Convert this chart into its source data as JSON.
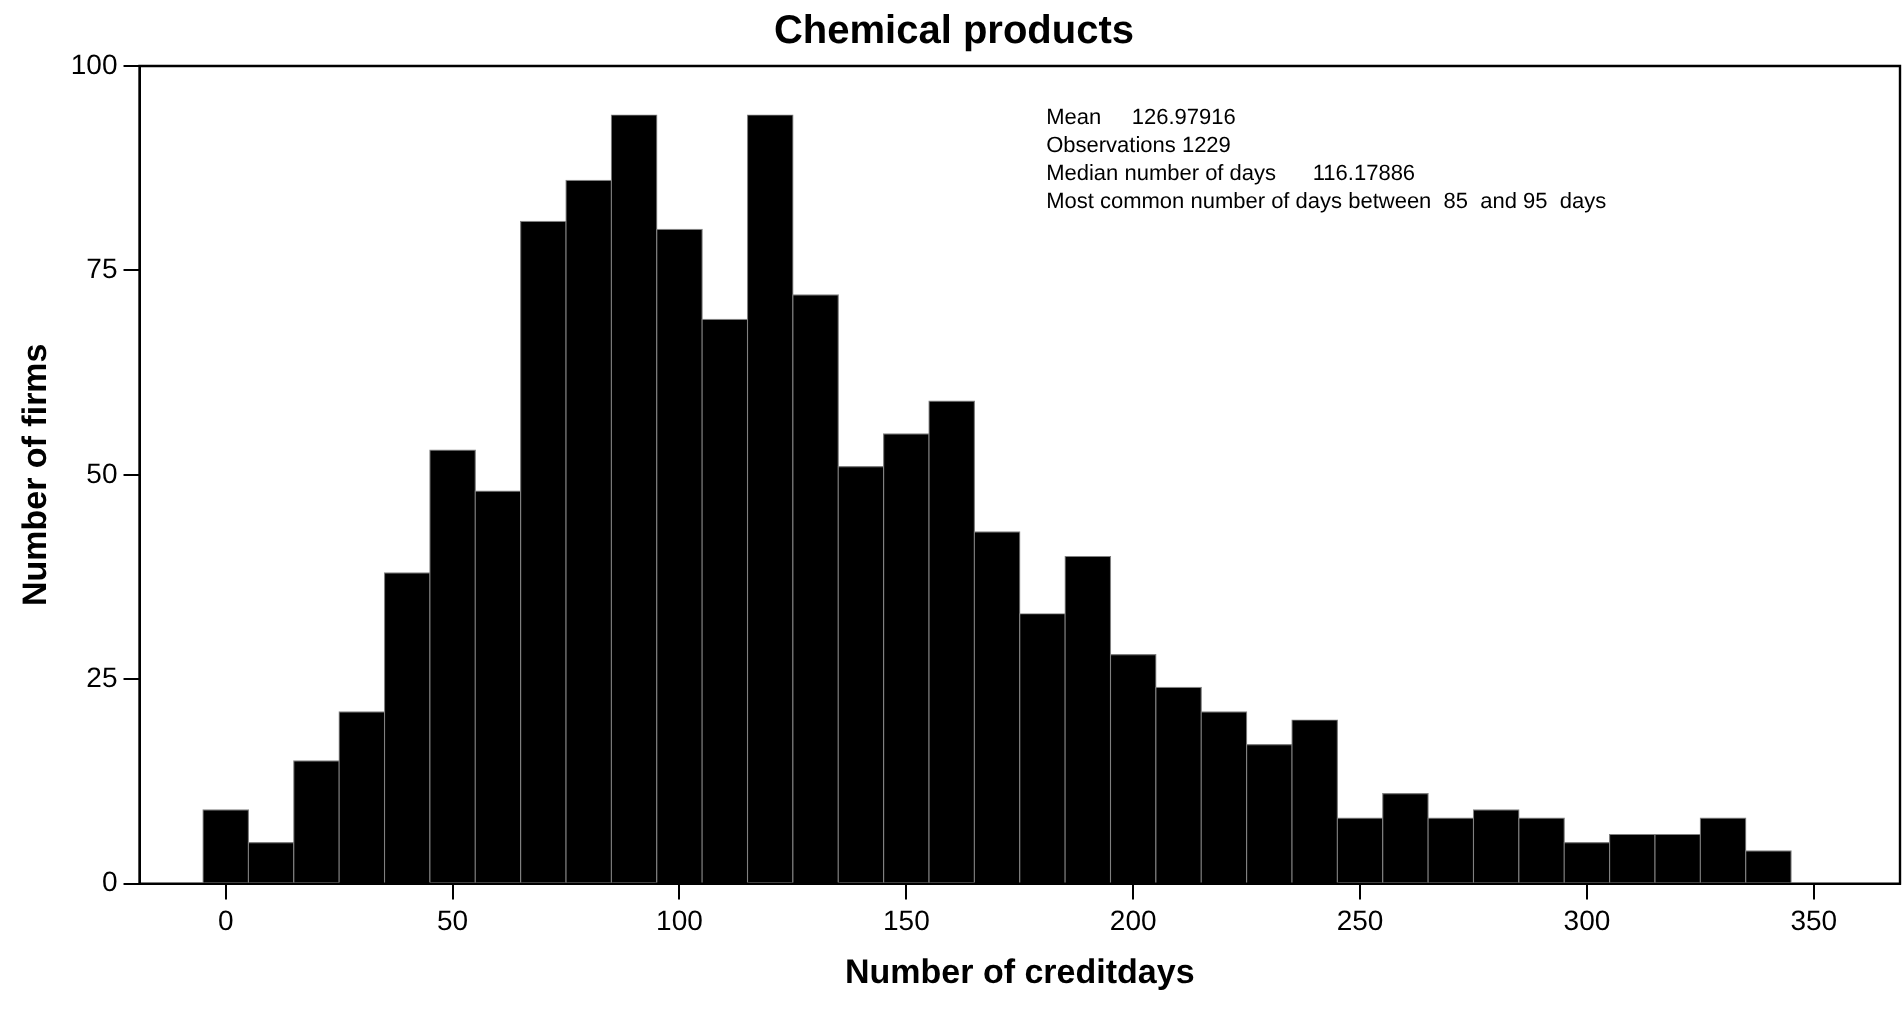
{
  "chart_data": {
    "type": "histogram",
    "title": "Chemical products",
    "xlabel": "Number of creditdays",
    "ylabel": "Number of firms",
    "bins": [
      -5,
      5,
      15,
      25,
      35,
      45,
      55,
      65,
      75,
      85,
      95,
      105,
      115,
      125,
      135,
      145,
      155,
      165,
      175,
      185,
      195,
      205,
      215,
      225,
      235,
      245,
      255,
      265,
      275,
      285,
      295,
      305,
      315,
      325,
      335,
      345
    ],
    "values": [
      9,
      5,
      15,
      21,
      38,
      53,
      48,
      81,
      86,
      94,
      80,
      69,
      94,
      72,
      51,
      55,
      59,
      43,
      33,
      40,
      28,
      24,
      21,
      17,
      20,
      8,
      11,
      8,
      9,
      8,
      5,
      6,
      6,
      8,
      4
    ],
    "color": "#000000",
    "xlim": [
      -19,
      369
    ],
    "xticks": [
      0,
      50,
      100,
      150,
      200,
      250,
      300,
      350
    ],
    "ylim": [
      0,
      100
    ],
    "yticks": [
      0,
      25,
      50,
      75,
      100
    ],
    "grid": false,
    "legend": false,
    "annotations": [
      "Mean     126.97916",
      "Observations 1229",
      "Median number of days      116.17886",
      "Most common number of days between  85  and 95  days"
    ]
  }
}
